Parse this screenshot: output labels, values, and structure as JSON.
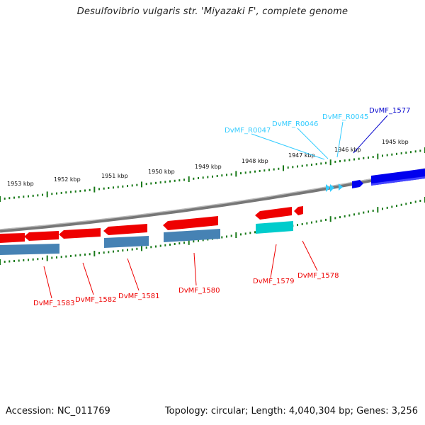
{
  "title": "Desulfovibrio vulgaris str. 'Miyazaki F', complete genome",
  "accession": "Accession: NC_011769",
  "topology": "Topology: circular; Length: 4,040,304 bp; Genes: 3,256",
  "colors": {
    "forward_gene": "#0000ee",
    "forward_rna": "#33ccff",
    "reverse_gene": "#ee0000",
    "reverse_cds": "#4682b4",
    "reverse_rna": "#00cccc",
    "backbone": "#888888",
    "ticks": "#1a7a1a"
  },
  "kbp_labels": [
    "1945 kbp",
    "1946 kbp",
    "1947 kbp",
    "1948 kbp",
    "1949 kbp",
    "1950 kbp",
    "1951 kbp",
    "1952 kbp",
    "1953 kbp"
  ],
  "top_labels": [
    "DvMF_1577",
    "DvMF_R0045",
    "DvMF_R0046",
    "DvMF_R0047"
  ],
  "bottom_labels": [
    "DvMF_1578",
    "DvMF_1579",
    "DvMF_1580",
    "DvMF_1581",
    "DvMF_1582",
    "DvMF_1583"
  ]
}
